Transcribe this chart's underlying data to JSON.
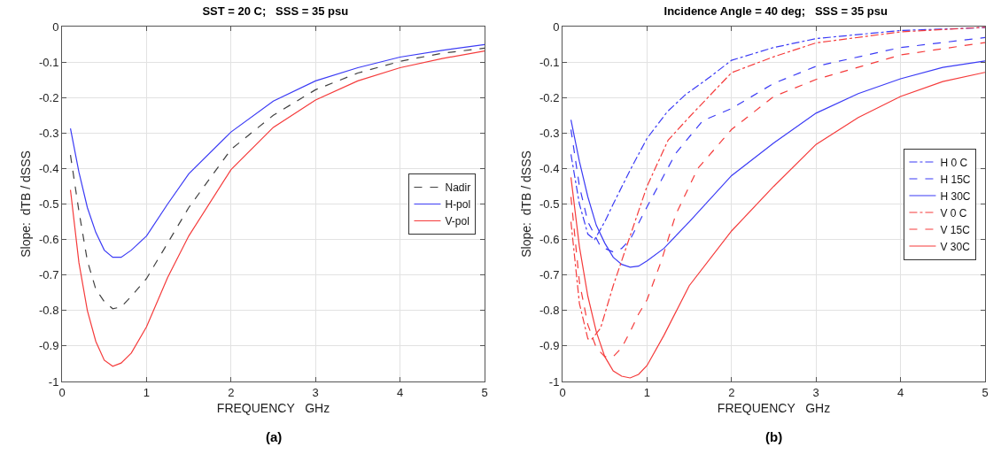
{
  "chart_data": [
    {
      "type": "line",
      "title": "SST = 20 C;   SSS = 35 psu",
      "xlabel": "FREQUENCY   GHz",
      "ylabel": "Slope:  dTB / dSSS",
      "annotations": [
        "(a)"
      ],
      "xlim": [
        0,
        5
      ],
      "xticks": [
        0,
        1,
        2,
        3,
        4,
        5
      ],
      "ylim": [
        -1,
        0
      ],
      "yticks": [
        -1,
        -0.9,
        -0.8,
        -0.7,
        -0.6,
        -0.5,
        -0.4,
        -0.3,
        -0.2,
        -0.1,
        0
      ],
      "grid": true,
      "legend": "right",
      "marker": "none",
      "x": [
        0.1,
        0.2,
        0.3,
        0.4,
        0.5,
        0.6,
        0.7,
        0.82,
        1.0,
        1.25,
        1.5,
        2.0,
        2.5,
        3.0,
        3.5,
        4.0,
        4.5,
        5.0
      ],
      "series": [
        {
          "name": "Nadir",
          "color": "#404040",
          "line_style": "dashed",
          "values": [
            -0.362,
            -0.52,
            -0.66,
            -0.74,
            -0.775,
            -0.795,
            -0.79,
            -0.76,
            -0.71,
            -0.61,
            -0.51,
            -0.346,
            -0.25,
            -0.178,
            -0.131,
            -0.098,
            -0.075,
            -0.061
          ]
        },
        {
          "name": "H-pol",
          "color": "#3b3bf5",
          "line_style": "solid",
          "values": [
            -0.287,
            -0.41,
            -0.51,
            -0.58,
            -0.63,
            -0.65,
            -0.65,
            -0.63,
            -0.59,
            -0.5,
            -0.415,
            -0.297,
            -0.21,
            -0.153,
            -0.116,
            -0.086,
            -0.067,
            -0.051
          ]
        },
        {
          "name": "V-pol",
          "color": "#f53b3b",
          "line_style": "solid",
          "values": [
            -0.46,
            -0.665,
            -0.8,
            -0.887,
            -0.94,
            -0.957,
            -0.948,
            -0.92,
            -0.846,
            -0.707,
            -0.59,
            -0.403,
            -0.284,
            -0.207,
            -0.153,
            -0.116,
            -0.09,
            -0.069
          ]
        }
      ]
    },
    {
      "type": "line",
      "title": "Incidence Angle = 40 deg;   SSS = 35 psu",
      "xlabel": "FREQUENCY   GHz",
      "ylabel": "Slope:  dTB / dSSS",
      "annotations": [
        "(b)"
      ],
      "xlim": [
        0,
        5
      ],
      "xticks": [
        0,
        1,
        2,
        3,
        4,
        5
      ],
      "ylim": [
        -1,
        0
      ],
      "yticks": [
        -1,
        -0.9,
        -0.8,
        -0.7,
        -0.6,
        -0.5,
        -0.4,
        -0.3,
        -0.2,
        -0.1,
        0
      ],
      "grid": true,
      "legend": "right",
      "marker": "none",
      "series": [
        {
          "name": "H 0 C",
          "color": "#3b3bf5",
          "line_style": "dashdot",
          "x": [
            0.1,
            0.2,
            0.3,
            0.38,
            0.5,
            0.6,
            0.81,
            1.0,
            1.24,
            1.45,
            1.74,
            2.0,
            2.5,
            3.0,
            4.0,
            5.0
          ],
          "values": [
            -0.36,
            -0.5,
            -0.585,
            -0.6,
            -0.55,
            -0.5,
            -0.4,
            -0.315,
            -0.24,
            -0.193,
            -0.143,
            -0.095,
            -0.059,
            -0.034,
            -0.011,
            -0.003
          ]
        },
        {
          "name": "H 15C",
          "color": "#3b3bf5",
          "line_style": "dashed",
          "x": [
            0.1,
            0.2,
            0.3,
            0.45,
            0.6,
            0.7,
            0.8,
            1.0,
            1.34,
            1.66,
            2.0,
            2.5,
            3.0,
            4.0,
            5.0
          ],
          "values": [
            -0.29,
            -0.45,
            -0.55,
            -0.62,
            -0.635,
            -0.625,
            -0.6,
            -0.508,
            -0.357,
            -0.265,
            -0.231,
            -0.16,
            -0.112,
            -0.059,
            -0.031
          ]
        },
        {
          "name": "H 30C",
          "color": "#3b3bf5",
          "line_style": "solid",
          "x": [
            0.1,
            0.2,
            0.3,
            0.4,
            0.5,
            0.6,
            0.7,
            0.8,
            0.9,
            1.0,
            1.2,
            1.5,
            2.0,
            2.5,
            3.0,
            3.5,
            4.0,
            4.5,
            5.0
          ],
          "values": [
            -0.263,
            -0.38,
            -0.48,
            -0.56,
            -0.61,
            -0.65,
            -0.67,
            -0.678,
            -0.675,
            -0.66,
            -0.625,
            -0.55,
            -0.42,
            -0.328,
            -0.244,
            -0.189,
            -0.147,
            -0.115,
            -0.097
          ]
        },
        {
          "name": "V 0 C",
          "color": "#f53b3b",
          "line_style": "dashdot",
          "x": [
            0.1,
            0.2,
            0.3,
            0.35,
            0.45,
            0.6,
            0.8,
            1.0,
            1.25,
            1.5,
            2.0,
            2.5,
            3.0,
            4.0,
            5.0
          ],
          "values": [
            -0.55,
            -0.78,
            -0.88,
            -0.88,
            -0.85,
            -0.73,
            -0.59,
            -0.45,
            -0.32,
            -0.255,
            -0.13,
            -0.085,
            -0.046,
            -0.015,
            -0.002
          ]
        },
        {
          "name": "V 15C",
          "color": "#f53b3b",
          "line_style": "dashed",
          "x": [
            0.1,
            0.2,
            0.3,
            0.4,
            0.5,
            0.6,
            0.7,
            0.8,
            0.9,
            1.0,
            1.17,
            1.34,
            1.6,
            2.0,
            2.5,
            3.0,
            4.0,
            5.0
          ],
          "values": [
            -0.48,
            -0.72,
            -0.84,
            -0.905,
            -0.93,
            -0.93,
            -0.905,
            -0.86,
            -0.81,
            -0.77,
            -0.66,
            -0.53,
            -0.4,
            -0.29,
            -0.197,
            -0.149,
            -0.08,
            -0.045
          ]
        },
        {
          "name": "V 30C",
          "color": "#f53b3b",
          "line_style": "solid",
          "x": [
            0.1,
            0.2,
            0.3,
            0.4,
            0.5,
            0.6,
            0.7,
            0.8,
            0.9,
            1.0,
            1.2,
            1.5,
            2.0,
            2.5,
            3.0,
            3.5,
            4.0,
            4.5,
            5.0
          ],
          "values": [
            -0.425,
            -0.62,
            -0.76,
            -0.86,
            -0.93,
            -0.97,
            -0.985,
            -0.99,
            -0.98,
            -0.955,
            -0.87,
            -0.73,
            -0.576,
            -0.45,
            -0.332,
            -0.256,
            -0.197,
            -0.155,
            -0.129
          ]
        }
      ]
    }
  ]
}
